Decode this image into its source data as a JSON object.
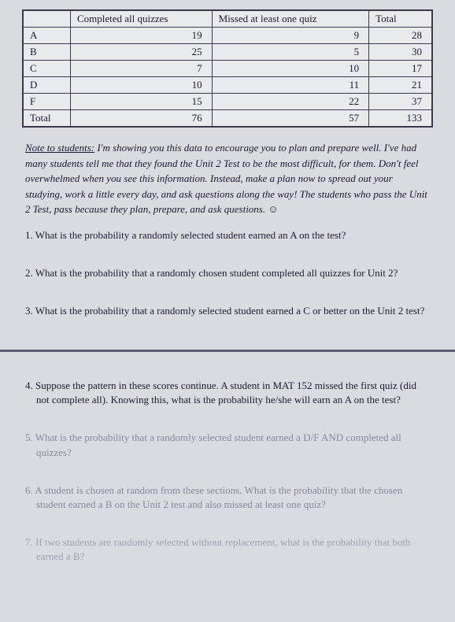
{
  "table": {
    "headers": [
      "",
      "Completed all quizzes",
      "Missed at least one quiz",
      "Total"
    ],
    "rows": [
      [
        "A",
        "19",
        "9",
        "28"
      ],
      [
        "B",
        "25",
        "5",
        "30"
      ],
      [
        "C",
        "7",
        "10",
        "17"
      ],
      [
        "D",
        "10",
        "11",
        "21"
      ],
      [
        "F",
        "15",
        "22",
        "37"
      ],
      [
        "Total",
        "76",
        "57",
        "133"
      ]
    ]
  },
  "note": {
    "label": "Note to students:",
    "body": "I'm showing you this data to encourage you to plan and prepare well. I've had many students tell me that they found the Unit 2 Test to be the most difficult, for them. Don't feel overwhelmed when you see this information. Instead, make a plan now to spread out your studying, work a little every day, and ask questions along the way! The students who pass the Unit 2 Test, pass because they plan, prepare, and ask questions. ☺"
  },
  "questions": {
    "q1": "1.  What is the probability a randomly selected student earned an A on the test?",
    "q2": "2.  What is the probability that a randomly chosen student completed all quizzes for Unit 2?",
    "q3": "3.  What is the probability that a randomly selected student earned a C or better on the Unit 2 test?",
    "q4": "4.  Suppose the pattern in these scores continue.  A student in MAT 152 missed the first quiz (did not complete all). Knowing this, what is the probability he/she will earn an A on the test?",
    "q5": "5.  What is the probability that a randomly selected student earned a D/F AND completed all quizzes?",
    "q6": "6.  A student is chosen at random from these sections. What is the probability that the chosen student earned a B on the Unit 2 test and also missed at least one quiz?",
    "q7": "7.  If two students are randomly selected without replacement, what is the probability that both earned a B?"
  },
  "style": {
    "bg": "#d8dce0",
    "border": "#3a3a4a",
    "text": "#1a1a2e",
    "faded": "#888894"
  }
}
